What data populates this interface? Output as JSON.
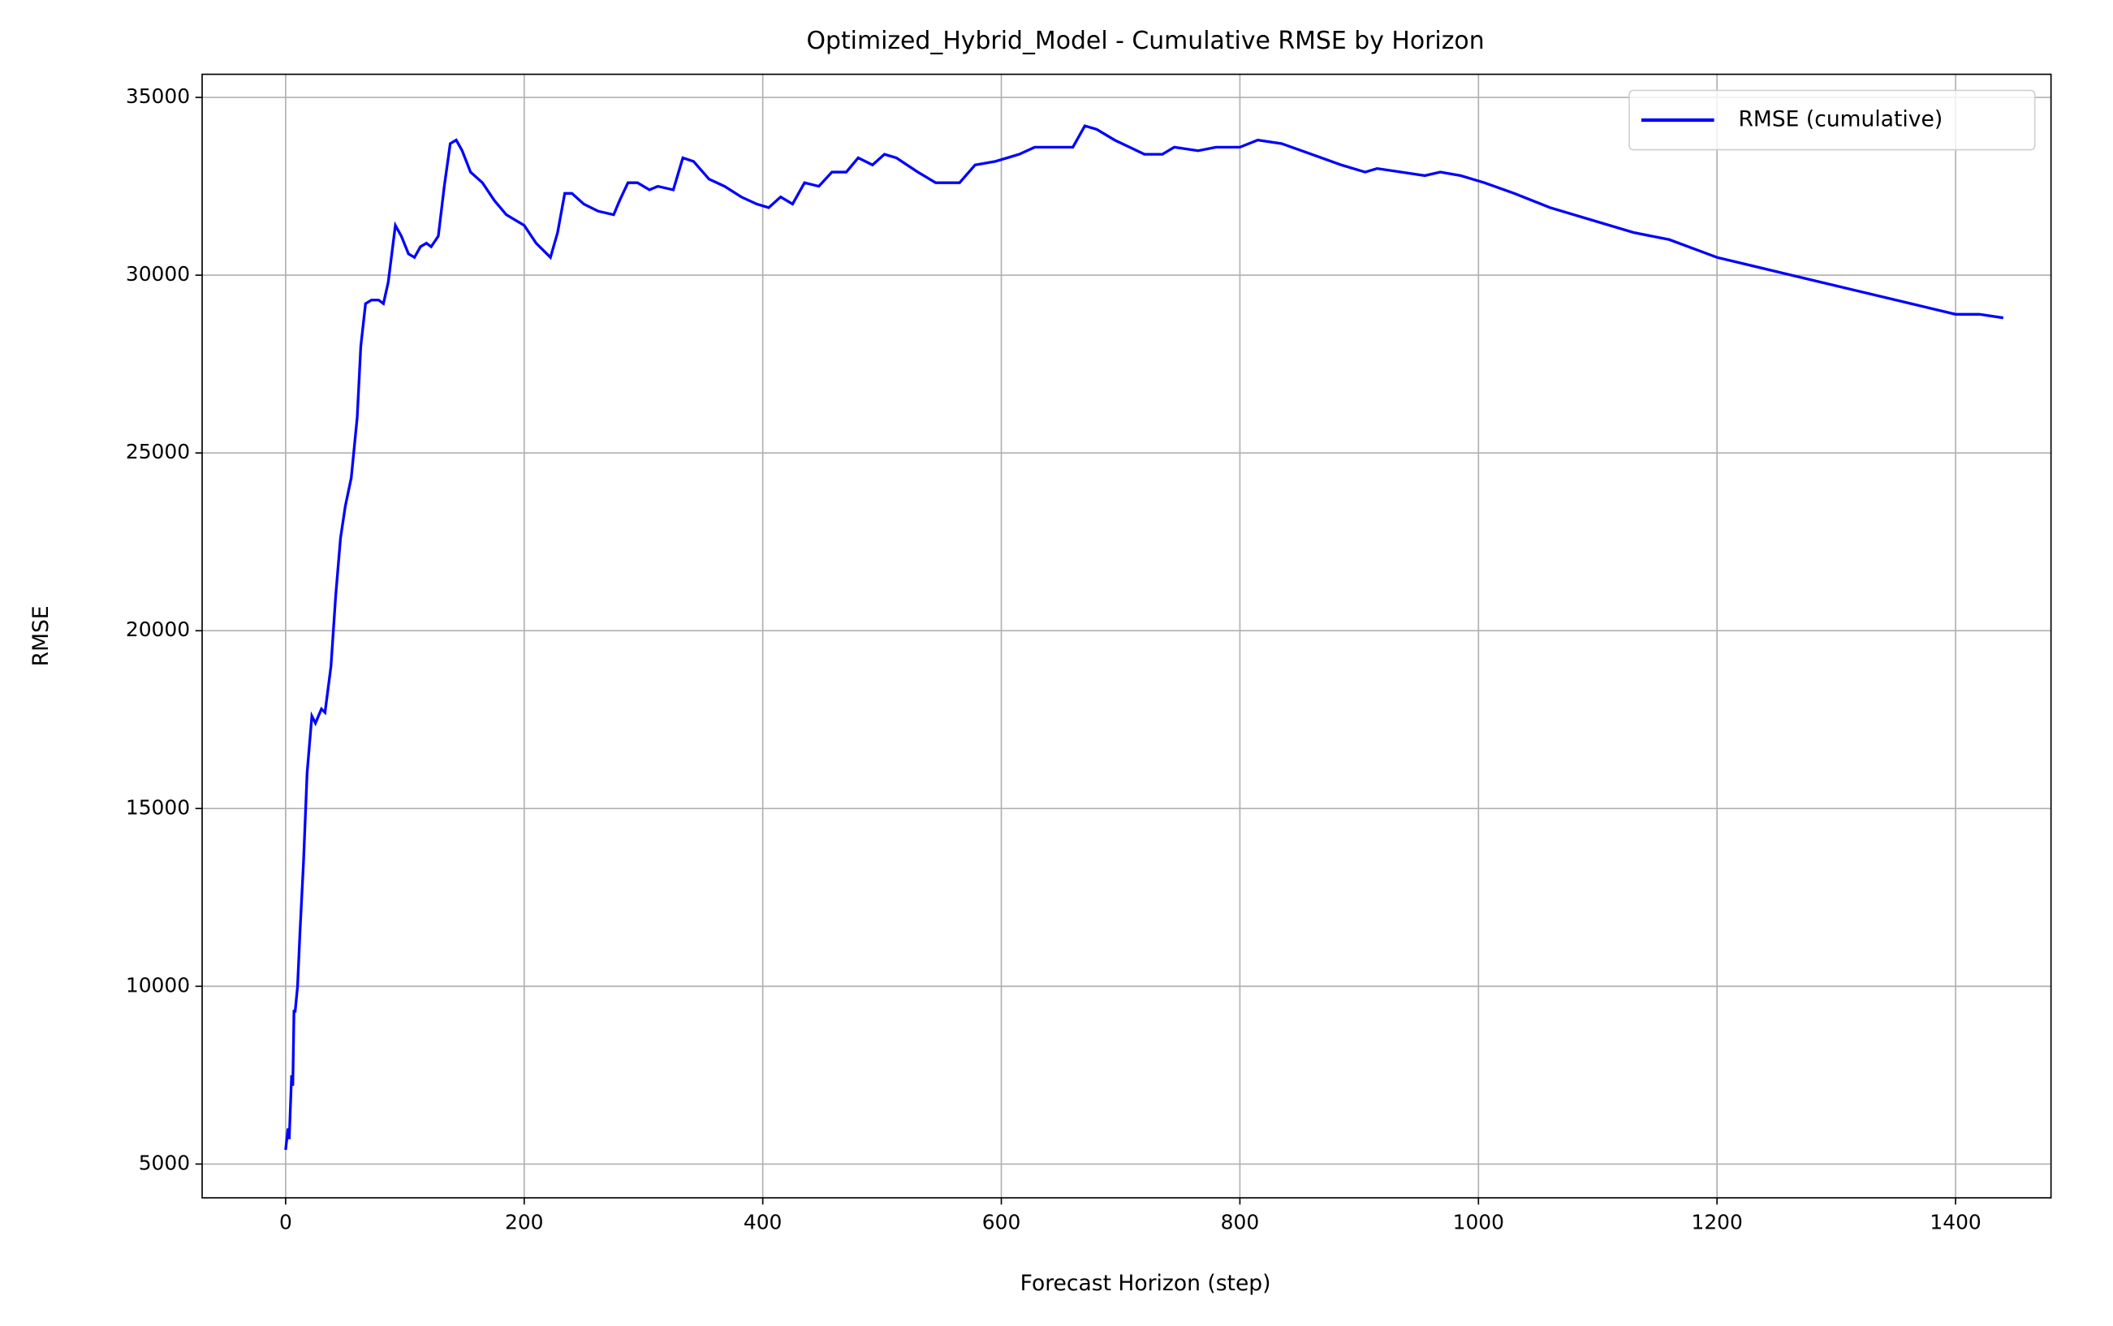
{
  "chart_data": {
    "type": "line",
    "title": "Optimized_Hybrid_Model - Cumulative RMSE by Horizon",
    "xlabel": "Forecast Horizon (step)",
    "ylabel": "RMSE",
    "x": [
      0,
      2,
      3,
      5,
      6,
      7,
      8,
      10,
      12,
      15,
      18,
      22,
      25,
      30,
      33,
      38,
      42,
      46,
      50,
      55,
      60,
      63,
      67,
      72,
      78,
      82,
      86,
      92,
      97,
      103,
      108,
      113,
      118,
      122,
      128,
      133,
      138,
      143,
      148,
      155,
      165,
      175,
      185,
      200,
      210,
      222,
      228,
      234,
      240,
      250,
      262,
      275,
      280,
      287,
      295,
      305,
      312,
      325,
      333,
      342,
      355,
      368,
      382,
      395,
      405,
      415,
      425,
      435,
      447,
      458,
      470,
      480,
      492,
      502,
      512,
      530,
      545,
      565,
      578,
      595,
      605,
      615,
      628,
      645,
      660,
      670,
      680,
      695,
      720,
      735,
      745,
      765,
      780,
      800,
      815,
      835,
      860,
      885,
      905,
      915,
      935,
      955,
      968,
      985,
      1005,
      1030,
      1060,
      1090,
      1130,
      1160,
      1200,
      1250,
      1300,
      1350,
      1400,
      1420,
      1440
    ],
    "series": [
      {
        "name": "RMSE (cumulative)",
        "color": "#0000ff",
        "values": [
          5400,
          6000,
          5700,
          7500,
          7200,
          9300,
          9300,
          10000,
          11500,
          13500,
          16000,
          17600,
          17400,
          17800,
          17700,
          19000,
          21000,
          22600,
          23500,
          24300,
          26000,
          28000,
          29200,
          29300,
          29300,
          29200,
          29800,
          31400,
          31100,
          30600,
          30500,
          30800,
          30900,
          30800,
          31100,
          32500,
          33700,
          33800,
          33500,
          32900,
          32600,
          32100,
          31700,
          31400,
          30900,
          30500,
          31200,
          32300,
          32300,
          32000,
          31800,
          31700,
          32100,
          32600,
          32600,
          32400,
          32500,
          32400,
          33300,
          33200,
          32700,
          32500,
          32200,
          32000,
          31900,
          32200,
          32000,
          32600,
          32500,
          32900,
          32900,
          33300,
          33100,
          33400,
          33300,
          32900,
          32600,
          32600,
          33100,
          33200,
          33300,
          33400,
          33600,
          33600,
          33600,
          34200,
          34100,
          33800,
          33400,
          33400,
          33600,
          33500,
          33600,
          33600,
          33800,
          33700,
          33400,
          33100,
          32900,
          33000,
          32900,
          32800,
          32900,
          32800,
          32600,
          32300,
          31900,
          31600,
          31200,
          31000,
          30500,
          30100,
          29700,
          29300,
          28900,
          28900,
          28800
        ]
      }
    ],
    "xlim": [
      -70,
      1480
    ],
    "xticks": [
      0,
      200,
      400,
      600,
      800,
      1000,
      1200,
      1400
    ],
    "ylim": [
      4050,
      35650
    ],
    "yticks": [
      5000,
      10000,
      15000,
      20000,
      25000,
      30000,
      35000
    ],
    "grid": true,
    "legend": "upper right"
  }
}
